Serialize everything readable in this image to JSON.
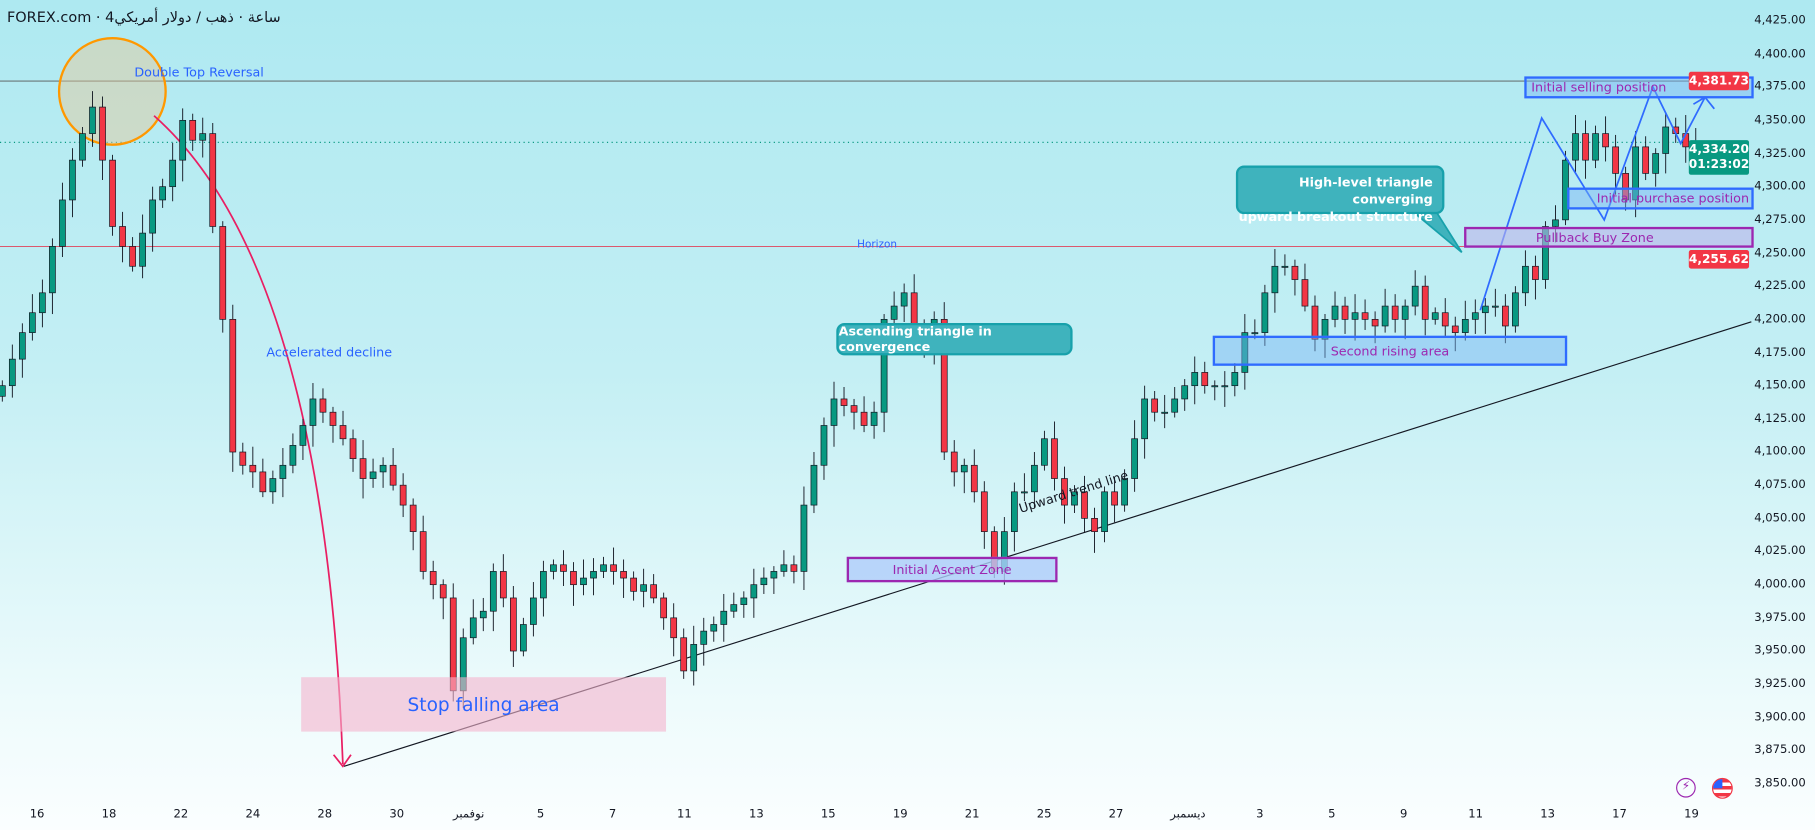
{
  "header": {
    "title": "FOREX.com · 4ساعة · ذهب / دولار أمريكي"
  },
  "colors": {
    "up": "#089981",
    "down": "#f23645",
    "accent": "#2962ff",
    "zone_text": "#9c27b0",
    "callout": "#3fb3bd",
    "sell_tag": "#f23645",
    "price_tag": "#089981"
  },
  "chart_data": {
    "type": "candlestick",
    "title": "FOREX.com · 4ساعة · ذهب / دولار أمريكي",
    "ylim": [
      3850,
      4425
    ],
    "y_ticks": [
      "4,425.00",
      "4,400.00",
      "4,375.00",
      "4,350.00",
      "4,325.00",
      "4,300.00",
      "4,275.00",
      "4,250.00",
      "4,225.00",
      "4,200.00",
      "4,175.00",
      "4,150.00",
      "4,125.00",
      "4,100.00",
      "4,075.00",
      "4,050.00",
      "4,025.00",
      "4,000.00",
      "3,975.00",
      "3,950.00",
      "3,925.00",
      "3,900.00",
      "3,875.00",
      "3,850.00"
    ],
    "x_ticks": [
      "16",
      "18",
      "22",
      "24",
      "28",
      "30",
      "نوفمبر",
      "5",
      "7",
      "11",
      "13",
      "15",
      "19",
      "21",
      "25",
      "27",
      "ديسمبر",
      "3",
      "5",
      "9",
      "11",
      "13",
      "17",
      "19"
    ],
    "closes": [
      4150,
      4170,
      4190,
      4205,
      4220,
      4255,
      4290,
      4320,
      4340,
      4360,
      4320,
      4270,
      4255,
      4240,
      4265,
      4290,
      4300,
      4320,
      4350,
      4335,
      4340,
      4270,
      4200,
      4100,
      4090,
      4085,
      4070,
      4080,
      4090,
      4105,
      4120,
      4140,
      4130,
      4120,
      4110,
      4095,
      4080,
      4085,
      4090,
      4075,
      4060,
      4040,
      4010,
      4000,
      3990,
      3920,
      3960,
      3975,
      3980,
      4010,
      3990,
      3950,
      3970,
      3990,
      4010,
      4015,
      4010,
      4000,
      4005,
      4010,
      4015,
      4010,
      4005,
      3995,
      4000,
      3990,
      3975,
      3960,
      3935,
      3955,
      3965,
      3970,
      3980,
      3985,
      3990,
      4000,
      4005,
      4010,
      4015,
      4010,
      4060,
      4090,
      4120,
      4140,
      4135,
      4130,
      4120,
      4130,
      4200,
      4210,
      4220,
      4190,
      4180,
      4200,
      4100,
      4085,
      4090,
      4070,
      4040,
      4010,
      4040,
      4070,
      4070,
      4090,
      4110,
      4080,
      4060,
      4070,
      4050,
      4040,
      4070,
      4060,
      4080,
      4110,
      4140,
      4130,
      4130,
      4140,
      4150,
      4160,
      4150,
      4150,
      4150,
      4160,
      4190,
      4190,
      4220,
      4240,
      4240,
      4230,
      4210,
      4185,
      4200,
      4210,
      4200,
      4205,
      4200,
      4195,
      4210,
      4200,
      4210,
      4225,
      4200,
      4205,
      4195,
      4190,
      4200,
      4205,
      4210,
      4210,
      4195,
      4220,
      4240,
      4230,
      4270,
      4275,
      4320,
      4340,
      4320,
      4340,
      4330,
      4310,
      4290,
      4330,
      4310,
      4325,
      4345,
      4340,
      4330,
      4334.2
    ],
    "levels": [
      {
        "name": "Initial selling position level",
        "value": 4381.73,
        "label": "4,381.73"
      },
      {
        "name": "Horizon",
        "value": 4255.62,
        "label": "4,255.62"
      },
      {
        "name": "Last price",
        "value": 4334.2,
        "label": "4,334.20",
        "countdown": "01:23:02"
      }
    ],
    "annotations": {
      "double_top": "Double Top Reversal",
      "accelerated": "Accelerated decline",
      "horizon": "Horizon",
      "ascending": "Ascending triangle in convergence",
      "callout_line1": "High-level triangle converging",
      "callout_line2": "upward breakout structure",
      "trend": "Upward trend line",
      "stop_falling": "Stop falling area",
      "initial_ascent": "Initial Ascent Zone",
      "second_rising": "Second rising area",
      "pullback": "Pullback Buy Zone",
      "purchase": "Initial purchase position",
      "selling": "Initial selling position"
    }
  }
}
